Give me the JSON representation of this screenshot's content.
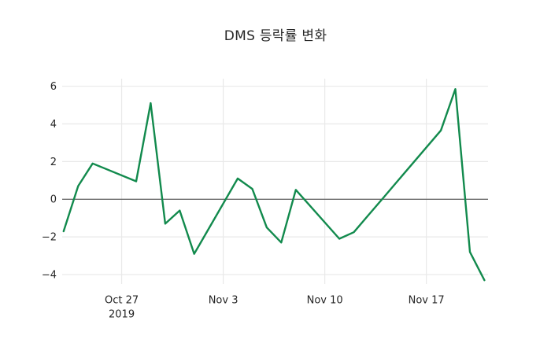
{
  "title": "DMS 등락률 변화",
  "chart_data": {
    "type": "line",
    "title": "DMS 등락률 변화",
    "series_name": "DMS 등락률",
    "x_dates": [
      "Oct 23",
      "Oct 24",
      "Oct 25",
      "Oct 28",
      "Oct 29",
      "Oct 30",
      "Oct 31",
      "Nov 1",
      "Nov 4",
      "Nov 5",
      "Nov 6",
      "Nov 7",
      "Nov 8",
      "Nov 11",
      "Nov 12",
      "Nov 13",
      "Nov 14",
      "Nov 15",
      "Nov 18",
      "Nov 19",
      "Nov 20",
      "Nov 21"
    ],
    "day_offsets": [
      0,
      1,
      2,
      5,
      6,
      7,
      8,
      9,
      12,
      13,
      14,
      15,
      16,
      19,
      20,
      21,
      22,
      23,
      26,
      27,
      28,
      29
    ],
    "values": [
      -1.7,
      0.7,
      1.9,
      0.95,
      5.1,
      -1.3,
      -0.6,
      -2.9,
      1.1,
      0.55,
      -1.5,
      -2.3,
      0.5,
      -2.1,
      -1.75,
      -0.85,
      0.05,
      0.95,
      3.65,
      5.85,
      -2.8,
      -4.3
    ],
    "yticks": [
      6,
      4,
      2,
      0,
      -2,
      -4
    ],
    "ytick_labels": [
      "6",
      "4",
      "2",
      "0",
      "−2",
      "−4"
    ],
    "xticks": [
      {
        "label": "Oct 27",
        "sublabel": "2019",
        "day": 4
      },
      {
        "label": "Nov 3",
        "sublabel": "",
        "day": 11
      },
      {
        "label": "Nov 10",
        "sublabel": "",
        "day": 18
      },
      {
        "label": "Nov 17",
        "sublabel": "",
        "day": 25
      }
    ],
    "ylim": [
      -4.5,
      6.4
    ],
    "xlim_days": [
      -0.1,
      29.25
    ],
    "grid": true,
    "zero_line": true,
    "legend": "none",
    "xlabel": "",
    "ylabel": ""
  },
  "colors": {
    "line": "#128a4d",
    "grid": "#e9e9e9",
    "zero_line": "#3d3d3d",
    "text": "#262626",
    "background": "#ffffff"
  }
}
